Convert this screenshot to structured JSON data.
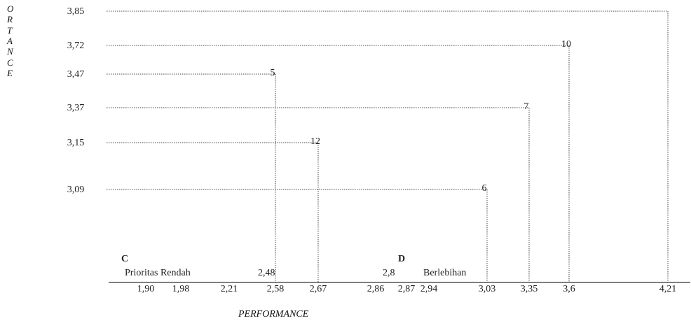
{
  "chart_data": {
    "type": "scatter",
    "title": "",
    "xlabel": "PERFORMANCE",
    "ylabel_letters": [
      "O",
      "R",
      "T",
      "A",
      "N",
      "C",
      "E"
    ],
    "y_ticks": [
      "3,85",
      "3,72",
      "3,47",
      "3,37",
      "3,15",
      "3,09"
    ],
    "x_ticks": [
      "1,90",
      "1,98",
      "2,21",
      "2,58",
      "2,67",
      "2,86",
      "2,87",
      "2,94",
      "3,03",
      "3,35",
      "3,6",
      "4,21"
    ],
    "points": [
      {
        "label": "",
        "x": 4.21,
        "y": 3.85
      },
      {
        "label": "10",
        "x": 3.6,
        "y": 3.72
      },
      {
        "label": "5",
        "x": 2.58,
        "y": 3.47
      },
      {
        "label": "7",
        "x": 3.35,
        "y": 3.37
      },
      {
        "label": "12",
        "x": 2.67,
        "y": 3.15
      },
      {
        "label": "6",
        "x": 3.03,
        "y": 3.09
      }
    ],
    "quadrants": [
      {
        "letter": "C",
        "name": "Prioritas Rendah",
        "mean_label": "2,48"
      },
      {
        "letter": "D",
        "name": "Berlebihan",
        "mean_label": "2,8"
      }
    ],
    "grid": false
  }
}
